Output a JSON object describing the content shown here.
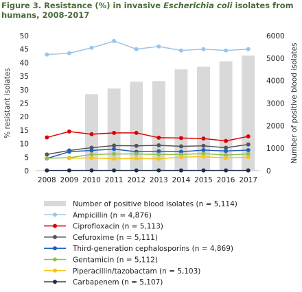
{
  "figure": {
    "label": "Figure 3. Resistance (%) in invasive ",
    "italic": "Escherichia coli",
    "rest": " isolates from",
    "line2": "humans, 2008-2017"
  },
  "chart_data": {
    "type": "bar+line",
    "categories": [
      "2008",
      "2009",
      "2010",
      "2011",
      "2012",
      "2013",
      "2014",
      "2015",
      "2016",
      "2017"
    ],
    "y_left": {
      "label": "% resistant isolates",
      "ylim": [
        0,
        50
      ],
      "ticks": [
        "0",
        "5",
        "10",
        "15",
        "20",
        "25",
        "30",
        "35",
        "40",
        "45",
        "50"
      ]
    },
    "y_right": {
      "label": "Number of positive blood isolates",
      "ylim": [
        0,
        6000
      ],
      "ticks": [
        "0",
        "1000",
        "2000",
        "3000",
        "4000",
        "5000",
        "6000"
      ]
    },
    "bars": {
      "name": "Number of positive blood isolates (n = 5,114)",
      "color": "#d9d9d9",
      "values": [
        null,
        null,
        3400,
        3650,
        3950,
        3980,
        4500,
        4620,
        4860,
        5114
      ]
    },
    "series": [
      {
        "name": "Ampicillin (n = 4,876)",
        "color": "#9dc3e6",
        "values": [
          43.0,
          43.5,
          45.5,
          48.0,
          45.0,
          46.0,
          44.5,
          45.0,
          44.5,
          45.0
        ]
      },
      {
        "name": "Ciprofloxacin (n = 5,113)",
        "color": "#e00000",
        "values": [
          12.3,
          14.5,
          13.5,
          14.0,
          14.0,
          12.2,
          12.1,
          11.9,
          11.0,
          12.7
        ]
      },
      {
        "name": "Cefuroxime (n = 5,111)",
        "color": "#555555",
        "values": [
          6.0,
          7.5,
          8.5,
          9.3,
          9.2,
          9.4,
          9.0,
          9.2,
          8.5,
          9.7
        ]
      },
      {
        "name": "Third-generation cephalosporins (n = 4,869)",
        "color": "#1f5fbf",
        "values": [
          4.5,
          7.0,
          7.5,
          8.0,
          7.0,
          7.2,
          7.0,
          7.6,
          7.3,
          7.6
        ]
      },
      {
        "name": "Gentamicin (n = 5,112)",
        "color": "#92c04d",
        "values": [
          4.6,
          4.8,
          6.0,
          6.2,
          6.2,
          6.0,
          6.0,
          6.3,
          5.8,
          6.2
        ]
      },
      {
        "name": "Piperacillin/tazobactam (n = 5,103)",
        "color": "#f5c518",
        "values": [
          null,
          4.6,
          4.7,
          4.4,
          4.5,
          4.4,
          5.0,
          5.2,
          4.7,
          5.0
        ]
      },
      {
        "name": "Carbapenem (n = 5,107)",
        "color": "#1f2d4a",
        "values": [
          0.1,
          0.1,
          0.1,
          0.1,
          0.1,
          0.1,
          0.1,
          0.1,
          0.1,
          0.1
        ]
      }
    ]
  }
}
